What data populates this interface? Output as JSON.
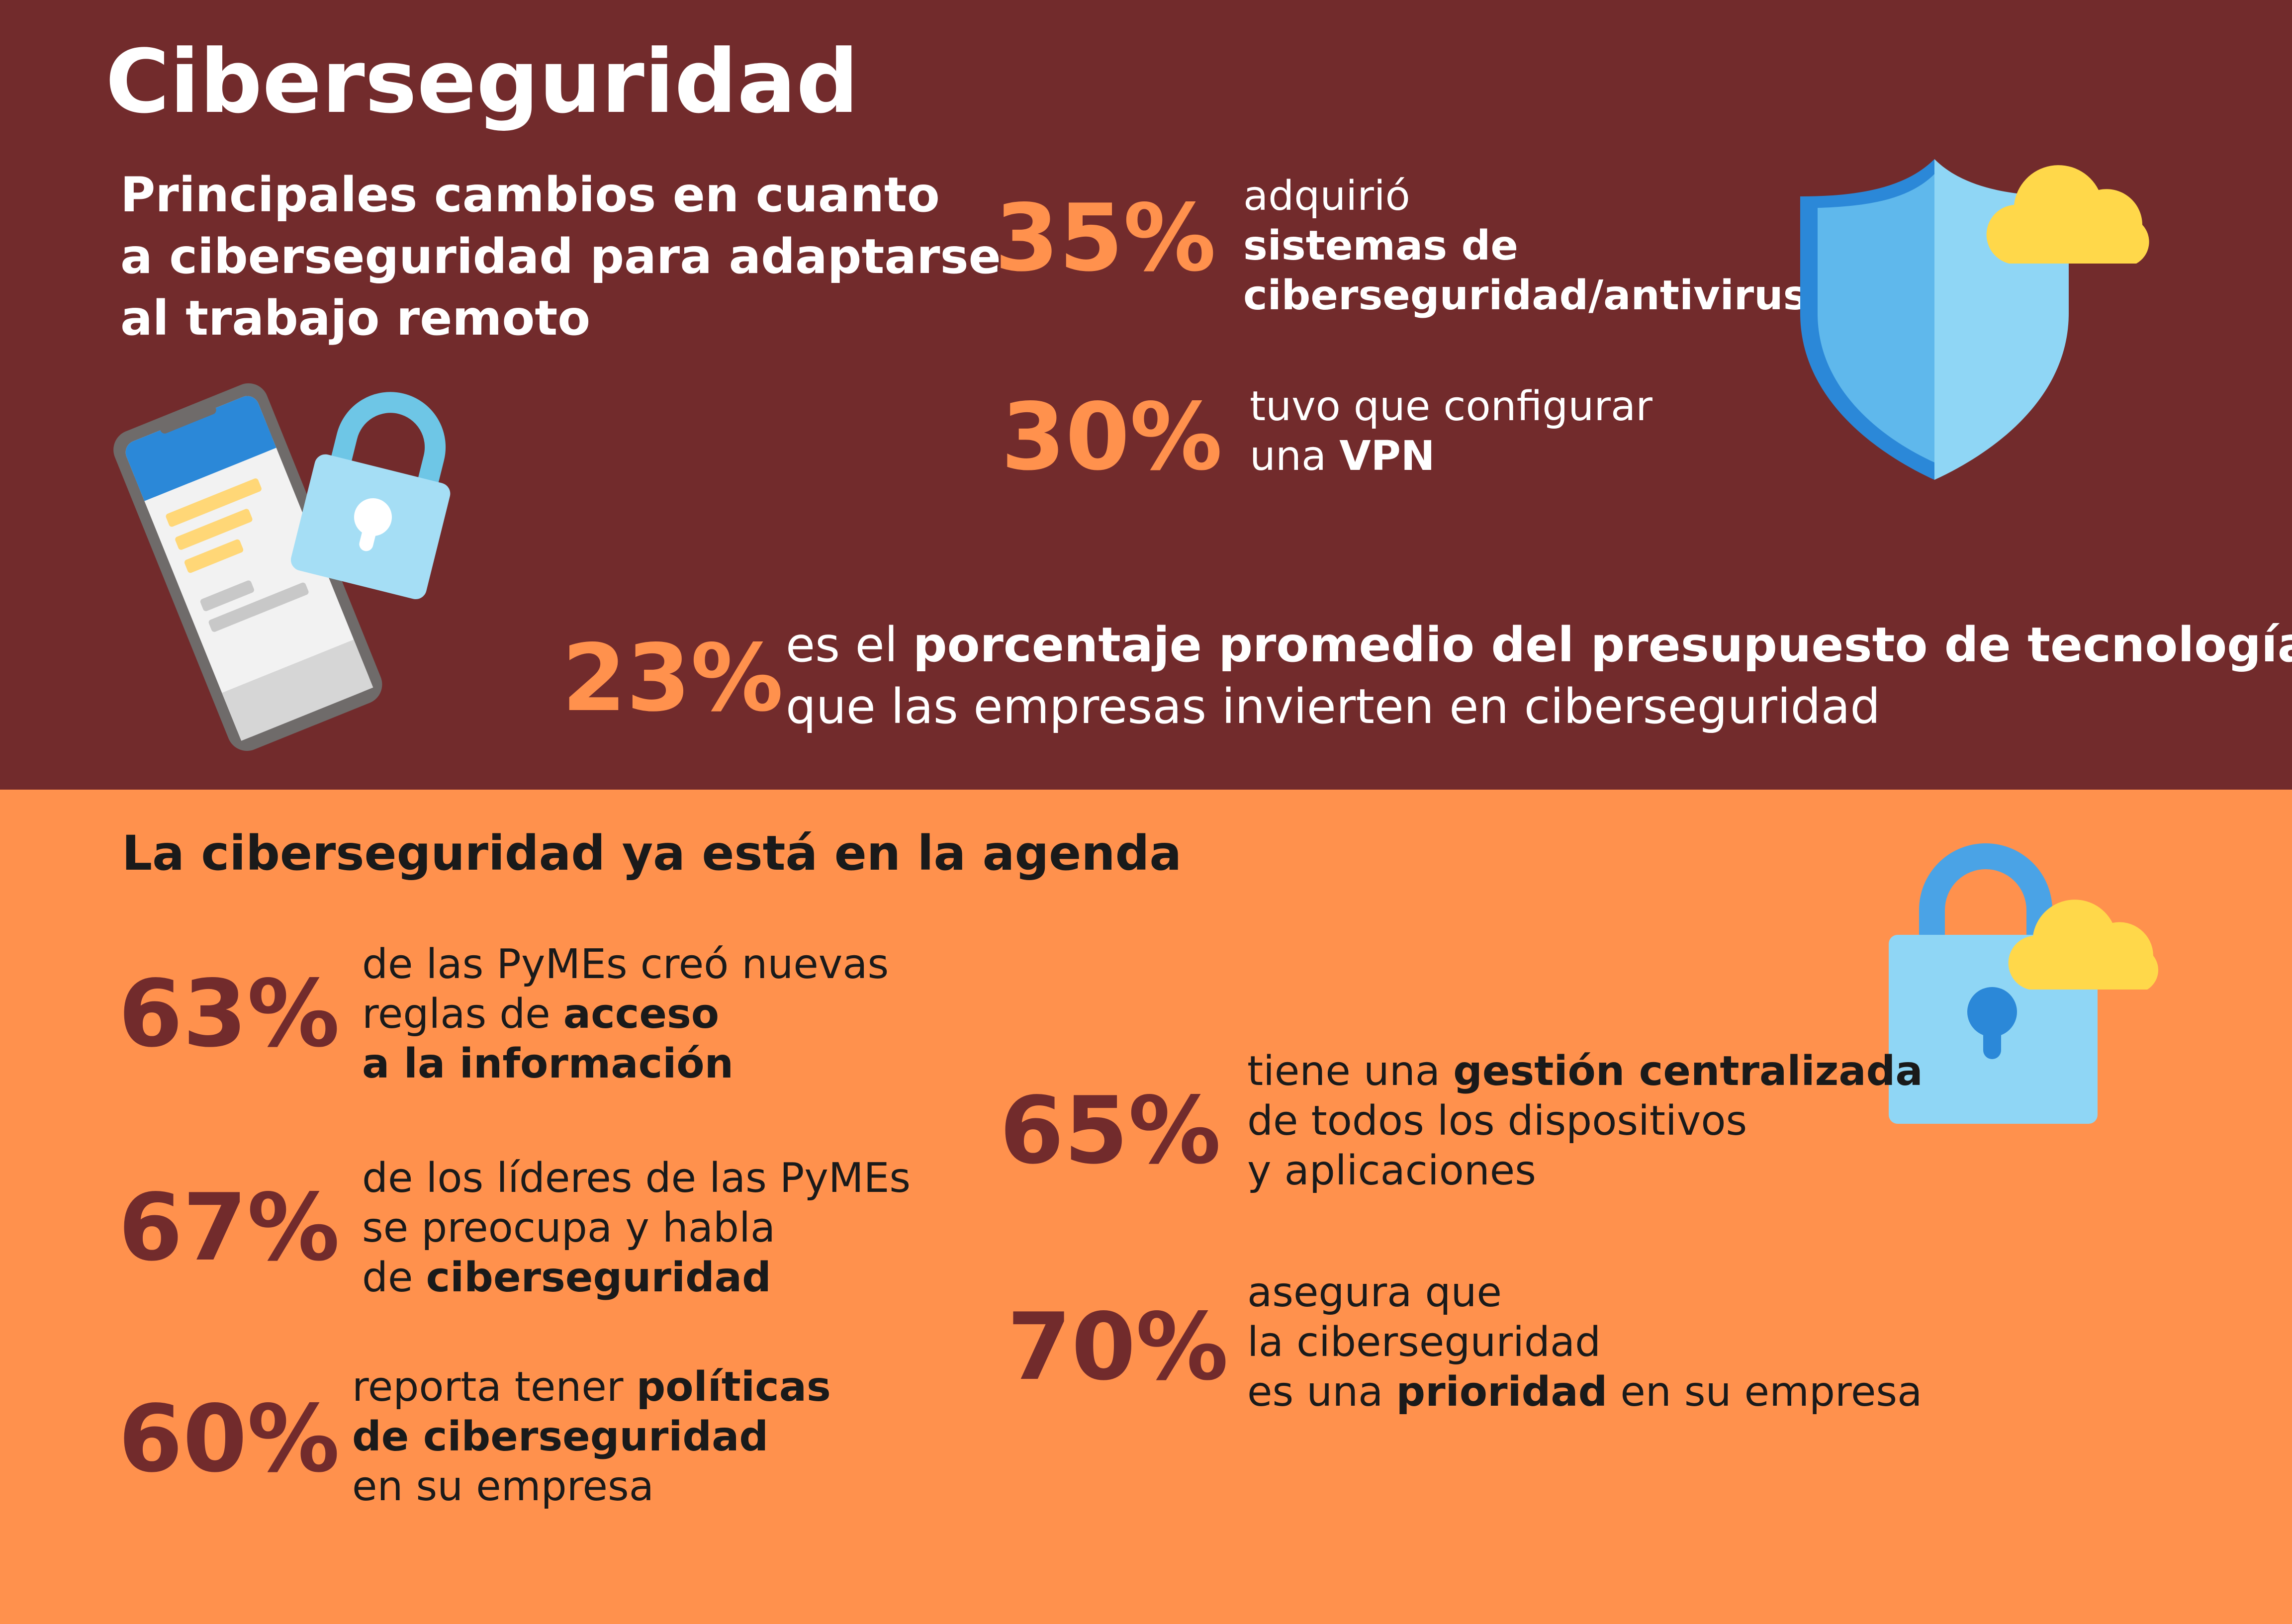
{
  "title": "Ciberseguridad",
  "subtitle": [
    "Principales cambios en cuanto",
    "a ciberseguridad para adaptarse",
    "al trabajo remoto"
  ],
  "remote_stats": [
    {
      "value": "35%",
      "lines": [
        [
          "adquirió",
          ""
        ],
        [
          "",
          "sistemas de"
        ],
        [
          "",
          "ciberseguridad/antivirus"
        ]
      ]
    },
    {
      "value": "30%",
      "lines": [
        [
          "tuvo que configurar",
          ""
        ],
        [
          "una ",
          "VPN"
        ]
      ]
    }
  ],
  "budget_stat": {
    "value": "23%",
    "line1_pre": "es el ",
    "line1_bold": "porcentaje promedio del presupuesto de tecnología",
    "line2": "que las empresas invierten en ciberseguridad"
  },
  "section_title": "La ciberseguridad ya está en la agenda",
  "agenda_stats": [
    {
      "value": "63%",
      "lines": [
        [
          "de las PyMEs creó nuevas",
          "",
          ""
        ],
        [
          "reglas de ",
          "acceso",
          ""
        ],
        [
          "",
          "a la información",
          ""
        ]
      ]
    },
    {
      "value": "67%",
      "lines": [
        [
          "de los líderes de las PyMEs",
          "",
          ""
        ],
        [
          "se preocupa y habla",
          "",
          ""
        ],
        [
          "de ",
          "ciberseguridad",
          ""
        ]
      ]
    },
    {
      "value": "60%",
      "lines": [
        [
          "reporta tener ",
          "políticas",
          ""
        ],
        [
          "",
          "de ciberseguridad",
          ""
        ],
        [
          "en su empresa",
          "",
          ""
        ]
      ]
    },
    {
      "value": "65%",
      "lines": [
        [
          "tiene una ",
          "gestión centralizada",
          ""
        ],
        [
          "de todos los dispositivos",
          "",
          ""
        ],
        [
          "y aplicaciones",
          "",
          ""
        ]
      ]
    },
    {
      "value": "70%",
      "lines": [
        [
          "asegura que",
          "",
          ""
        ],
        [
          "la ciberseguridad",
          "",
          ""
        ],
        [
          "es una ",
          "prioridad",
          " en su empresa"
        ]
      ]
    }
  ],
  "icons": [
    "phone-icon",
    "padlock-icon",
    "shield-icon",
    "cloud-icon"
  ],
  "colors": {
    "dark_red": "#722b2c",
    "orange": "#ff914d",
    "white": "#ffffff",
    "text_dark": "#1a1a1a"
  }
}
